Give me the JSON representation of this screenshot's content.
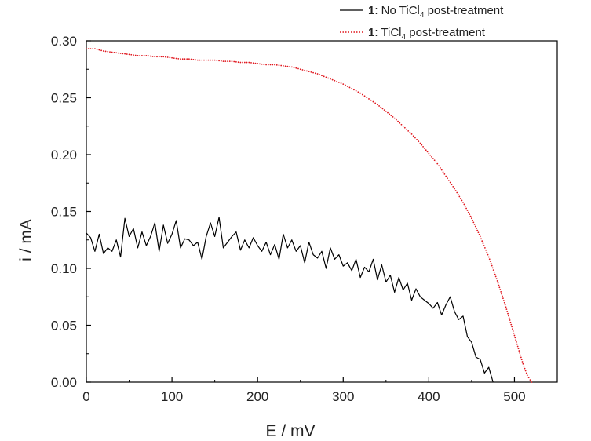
{
  "chart_data": {
    "type": "line",
    "title": "",
    "xlabel": "E / mV",
    "ylabel": "i / mA",
    "xlim": [
      0,
      550
    ],
    "ylim": [
      0,
      0.3
    ],
    "xticks": [
      0,
      100,
      200,
      300,
      400,
      500
    ],
    "yticks": [
      0.0,
      0.05,
      0.1,
      0.15,
      0.2,
      0.25,
      0.3
    ],
    "ytick_labels": [
      "0.00",
      "0.05",
      "0.10",
      "0.15",
      "0.20",
      "0.25",
      "0.30"
    ],
    "grid": false,
    "legend_position": "top-right",
    "series": [
      {
        "name_bold": "1",
        "name_pre": ": No TiCl",
        "name_sub": "4",
        "name_post": " post-treatment",
        "color": "#000000",
        "style": "solid",
        "x": [
          0,
          5,
          10,
          15,
          20,
          25,
          30,
          35,
          40,
          45,
          50,
          55,
          60,
          65,
          70,
          75,
          80,
          85,
          90,
          95,
          100,
          105,
          110,
          115,
          120,
          125,
          130,
          135,
          140,
          145,
          150,
          155,
          160,
          165,
          170,
          175,
          180,
          185,
          190,
          195,
          200,
          205,
          210,
          215,
          220,
          225,
          230,
          235,
          240,
          245,
          250,
          255,
          260,
          265,
          270,
          275,
          280,
          285,
          290,
          295,
          300,
          305,
          310,
          315,
          320,
          325,
          330,
          335,
          340,
          345,
          350,
          355,
          360,
          365,
          370,
          375,
          380,
          385,
          390,
          395,
          400,
          405,
          410,
          415,
          420,
          425,
          430,
          435,
          440,
          445,
          450,
          455,
          460,
          465,
          470,
          475
        ],
        "y": [
          0.131,
          0.127,
          0.115,
          0.13,
          0.113,
          0.118,
          0.115,
          0.125,
          0.11,
          0.144,
          0.128,
          0.135,
          0.118,
          0.132,
          0.12,
          0.128,
          0.14,
          0.115,
          0.138,
          0.122,
          0.13,
          0.142,
          0.118,
          0.126,
          0.125,
          0.12,
          0.123,
          0.108,
          0.128,
          0.14,
          0.128,
          0.145,
          0.118,
          0.123,
          0.128,
          0.132,
          0.116,
          0.125,
          0.118,
          0.127,
          0.12,
          0.115,
          0.123,
          0.112,
          0.121,
          0.108,
          0.13,
          0.118,
          0.125,
          0.115,
          0.12,
          0.105,
          0.123,
          0.112,
          0.109,
          0.115,
          0.1,
          0.118,
          0.108,
          0.112,
          0.102,
          0.105,
          0.098,
          0.108,
          0.092,
          0.101,
          0.097,
          0.108,
          0.09,
          0.103,
          0.088,
          0.094,
          0.079,
          0.092,
          0.081,
          0.087,
          0.072,
          0.082,
          0.075,
          0.072,
          0.069,
          0.065,
          0.07,
          0.059,
          0.068,
          0.075,
          0.062,
          0.055,
          0.058,
          0.04,
          0.035,
          0.022,
          0.02,
          0.008,
          0.013,
          0.0
        ]
      },
      {
        "name_bold": "1",
        "name_pre": ": TiCl",
        "name_sub": "4",
        "name_post": " post-treatment",
        "color": "#e0161d",
        "style": "dotted",
        "x": [
          0,
          10,
          20,
          30,
          40,
          50,
          60,
          70,
          80,
          90,
          100,
          110,
          120,
          130,
          140,
          150,
          160,
          170,
          180,
          190,
          200,
          210,
          220,
          230,
          240,
          250,
          260,
          270,
          280,
          290,
          300,
          310,
          320,
          330,
          340,
          350,
          360,
          370,
          380,
          390,
          400,
          410,
          420,
          430,
          440,
          450,
          460,
          470,
          480,
          490,
          500,
          510,
          515,
          520
        ],
        "y": [
          0.293,
          0.293,
          0.291,
          0.29,
          0.289,
          0.288,
          0.287,
          0.287,
          0.286,
          0.286,
          0.285,
          0.284,
          0.284,
          0.283,
          0.283,
          0.283,
          0.282,
          0.282,
          0.281,
          0.281,
          0.28,
          0.279,
          0.279,
          0.278,
          0.277,
          0.275,
          0.273,
          0.271,
          0.268,
          0.265,
          0.262,
          0.258,
          0.254,
          0.249,
          0.244,
          0.238,
          0.232,
          0.225,
          0.218,
          0.21,
          0.201,
          0.192,
          0.181,
          0.17,
          0.158,
          0.144,
          0.128,
          0.11,
          0.089,
          0.066,
          0.041,
          0.016,
          0.006,
          0.0
        ]
      }
    ]
  }
}
